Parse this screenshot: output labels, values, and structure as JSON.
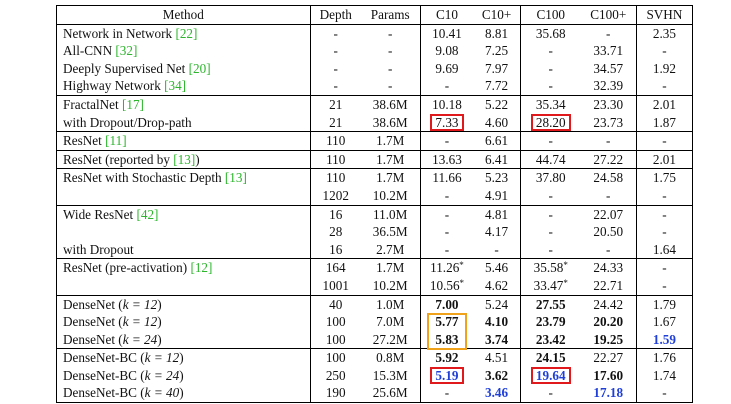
{
  "headers": [
    "Method",
    "Depth",
    "Params",
    "C10",
    "C10+",
    "C100",
    "C100+",
    "SVHN"
  ],
  "groups": [
    [
      {
        "method": "Network in Network ",
        "ref": "[22]",
        "depth": "-",
        "params": "-",
        "c10": "10.41",
        "c10p": "8.81",
        "c100": "35.68",
        "c100p": "-",
        "svhn": "2.35"
      },
      {
        "method": "All-CNN ",
        "ref": "[32]",
        "depth": "-",
        "params": "-",
        "c10": "9.08",
        "c10p": "7.25",
        "c100": "-",
        "c100p": "33.71",
        "svhn": "-"
      },
      {
        "method": "Deeply Supervised Net ",
        "ref": "[20]",
        "depth": "-",
        "params": "-",
        "c10": "9.69",
        "c10p": "7.97",
        "c100": "-",
        "c100p": "34.57",
        "svhn": "1.92"
      },
      {
        "method": "Highway Network ",
        "ref": "[34]",
        "depth": "-",
        "params": "-",
        "c10": "-",
        "c10p": "7.72",
        "c100": "-",
        "c100p": "32.39",
        "svhn": "-"
      }
    ],
    [
      {
        "method": "FractalNet ",
        "ref": "[17]",
        "depth": "21",
        "params": "38.6M",
        "c10": "10.18",
        "c10p": "5.22",
        "c100": "35.34",
        "c100p": "23.30",
        "svhn": "2.01"
      },
      {
        "method": "with Dropout/Drop-path",
        "ref": "",
        "depth": "21",
        "params": "38.6M",
        "c10": "7.33",
        "c10p": "4.60",
        "c100": "28.20",
        "c100p": "23.73",
        "svhn": "1.87",
        "box": {
          "c10": "r",
          "c100": "r"
        }
      }
    ],
    [
      {
        "method": "ResNet ",
        "ref": "[11]",
        "depth": "110",
        "params": "1.7M",
        "c10": "-",
        "c10p": "6.61",
        "c100": "-",
        "c100p": "-",
        "svhn": "-"
      }
    ],
    [
      {
        "method": "ResNet (reported by ",
        "ref": "[13]",
        "after": ")",
        "depth": "110",
        "params": "1.7M",
        "c10": "13.63",
        "c10p": "6.41",
        "c100": "44.74",
        "c100p": "27.22",
        "svhn": "2.01"
      }
    ],
    [
      {
        "method": "ResNet with Stochastic Depth ",
        "ref": "[13]",
        "depth": "110",
        "params": "1.7M",
        "c10": "11.66",
        "c10p": "5.23",
        "c100": "37.80",
        "c100p": "24.58",
        "svhn": "1.75"
      },
      {
        "method": "",
        "ref": "",
        "depth": "1202",
        "params": "10.2M",
        "c10": "-",
        "c10p": "4.91",
        "c100": "-",
        "c100p": "-",
        "svhn": "-"
      }
    ],
    [
      {
        "method": "Wide ResNet ",
        "ref": "[42]",
        "depth": "16",
        "params": "11.0M",
        "c10": "-",
        "c10p": "4.81",
        "c100": "-",
        "c100p": "22.07",
        "svhn": "-"
      },
      {
        "method": "",
        "ref": "",
        "depth": "28",
        "params": "36.5M",
        "c10": "-",
        "c10p": "4.17",
        "c100": "-",
        "c100p": "20.50",
        "svhn": "-"
      },
      {
        "method": "with Dropout",
        "ref": "",
        "depth": "16",
        "params": "2.7M",
        "c10": "-",
        "c10p": "-",
        "c100": "-",
        "c100p": "-",
        "svhn": "1.64"
      }
    ],
    [
      {
        "method": "ResNet (pre-activation) ",
        "ref": "[12]",
        "depth": "164",
        "params": "1.7M",
        "c10": "11.26",
        "c10_sup": "*",
        "c10p": "5.46",
        "c100": "35.58",
        "c100_sup": "*",
        "c100p": "24.33",
        "svhn": "-"
      },
      {
        "method": "",
        "ref": "",
        "depth": "1001",
        "params": "10.2M",
        "c10": "10.56",
        "c10_sup": "*",
        "c10p": "4.62",
        "c100": "33.47",
        "c100_sup": "*",
        "c100p": "22.71",
        "svhn": "-"
      }
    ],
    [
      {
        "method": "DenseNet (",
        "k": "k = 12",
        "after": ")",
        "depth": "40",
        "params": "1.0M",
        "c10": "7.00",
        "c10p": "5.24",
        "c100": "27.55",
        "c100p": "24.42",
        "svhn": "1.79",
        "bold": [
          "c10",
          "c100"
        ]
      },
      {
        "method": "DenseNet (",
        "k": "k = 12",
        "after": ")",
        "depth": "100",
        "params": "7.0M",
        "c10": "5.77",
        "c10p": "4.10",
        "c100": "23.79",
        "c100p": "20.20",
        "svhn": "1.67",
        "bold": [
          "c10",
          "c10p",
          "c100",
          "c100p"
        ]
      },
      {
        "method": "DenseNet (",
        "k": "k = 24",
        "after": ")",
        "depth": "100",
        "params": "27.2M",
        "c10": "5.83",
        "c10p": "3.74",
        "c100": "23.42",
        "c100p": "19.25",
        "svhn": "1.59",
        "bold": [
          "c10",
          "c10p",
          "c100",
          "c100p"
        ],
        "blue": [
          "svhn"
        ]
      }
    ],
    [
      {
        "method": "DenseNet-BC (",
        "k": "k = 12",
        "after": ")",
        "depth": "100",
        "params": "0.8M",
        "c10": "5.92",
        "c10p": "4.51",
        "c100": "24.15",
        "c100p": "22.27",
        "svhn": "1.76",
        "bold": [
          "c10",
          "c100"
        ]
      },
      {
        "method": "DenseNet-BC (",
        "k": "k = 24",
        "after": ")",
        "depth": "250",
        "params": "15.3M",
        "c10": "5.19",
        "c10p": "3.62",
        "c100": "19.64",
        "c100p": "17.60",
        "svhn": "1.74",
        "bold": [
          "c10p",
          "c100p"
        ],
        "blue": [
          "c10",
          "c100"
        ],
        "box": {
          "c10": "r",
          "c100": "r"
        }
      },
      {
        "method": "DenseNet-BC (",
        "k": "k = 40",
        "after": ")",
        "depth": "190",
        "params": "25.6M",
        "c10": "-",
        "c10p": "3.46",
        "c100": "-",
        "c100p": "17.18",
        "svhn": "-",
        "blue": [
          "c10p",
          "c100p"
        ]
      }
    ]
  ],
  "colors": {
    "ref": "#2db52d",
    "best": "#1f3fd8",
    "box_red": "#e0191d",
    "box_orange": "#f0a21a"
  }
}
